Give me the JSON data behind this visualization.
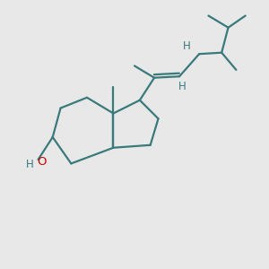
{
  "background_color": "#e8e8e8",
  "bond_color": "#3a7a7a",
  "bond_width": 1.6,
  "o_color": "#cc0000",
  "h_color": "#3a7a7a",
  "font_size": 8.5,
  "fig_size": [
    3.0,
    3.0
  ],
  "dpi": 100,
  "xlim": [
    0,
    10
  ],
  "ylim": [
    0,
    10
  ]
}
